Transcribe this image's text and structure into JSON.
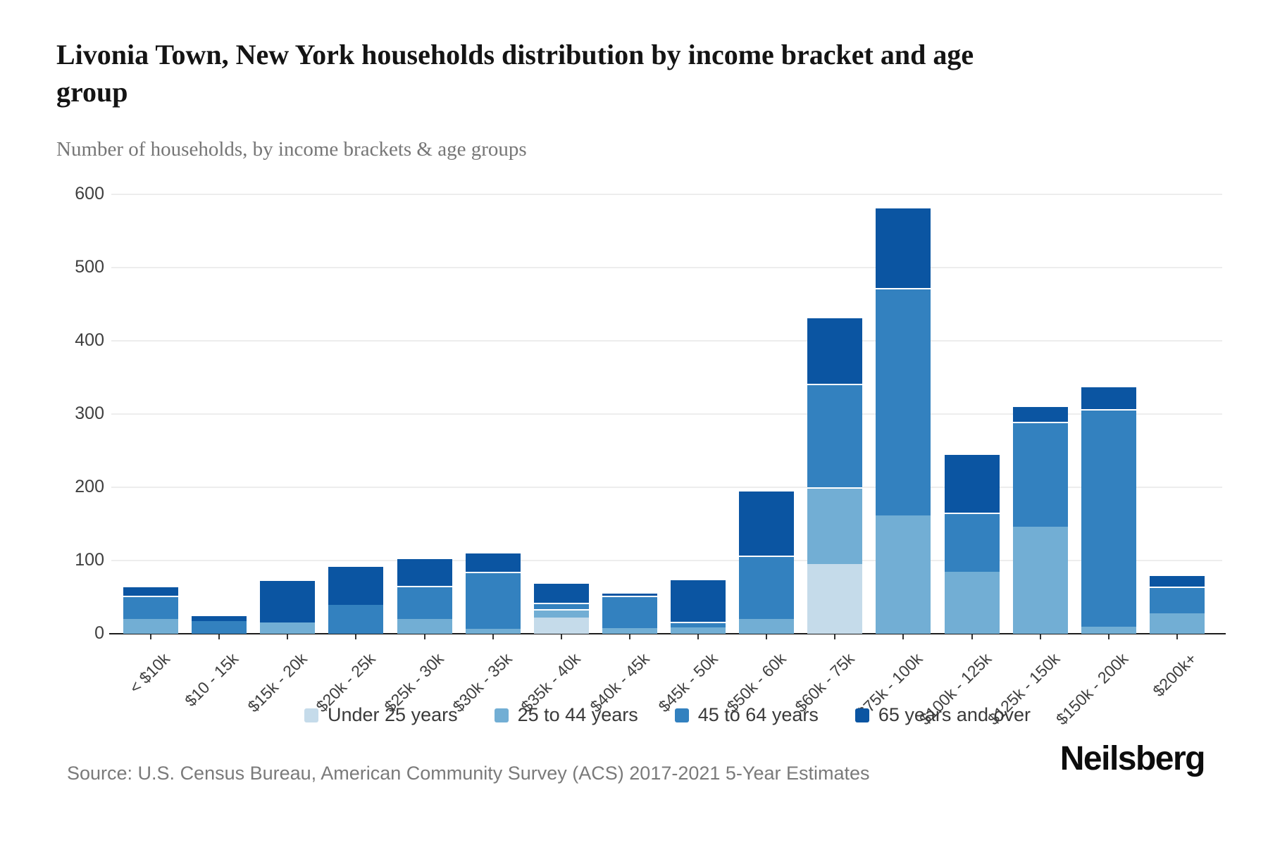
{
  "header": {
    "title": "Livonia Town, New York households distribution by income bracket and age group",
    "subtitle": "Number of households, by income brackets & age groups"
  },
  "chart_data": {
    "type": "bar",
    "stacked": true,
    "title": "Livonia Town, New York households distribution by income bracket and age group",
    "subtitle": "Number of households, by income brackets & age groups",
    "xlabel": "",
    "ylabel": "",
    "ylim": [
      0,
      600
    ],
    "yticks": [
      0,
      100,
      200,
      300,
      400,
      500,
      600
    ],
    "grid": true,
    "legend_position": "bottom",
    "categories": [
      "< $10k",
      "$10 - 15k",
      "$15k - 20k",
      "$20k - 25k",
      "$25k - 30k",
      "$30k - 35k",
      "$35k - 40k",
      "$40k - 45k",
      "$45k - 50k",
      "$50k - 60k",
      "$60k - 75k",
      "$75k - 100k",
      "$100k - 125k",
      "$125k - 150k",
      "$150k - 200k",
      "$200k+"
    ],
    "series": [
      {
        "name": "Under 25 years",
        "color": "#c5dbea",
        "values": [
          0,
          0,
          0,
          0,
          0,
          0,
          22,
          0,
          0,
          0,
          95,
          0,
          0,
          0,
          0,
          0
        ]
      },
      {
        "name": "25 to 44 years",
        "color": "#72aed4",
        "values": [
          20,
          0,
          15,
          0,
          20,
          7,
          12,
          8,
          9,
          20,
          105,
          162,
          85,
          146,
          10,
          28
        ]
      },
      {
        "name": "45 to 64 years",
        "color": "#3381bf",
        "values": [
          32,
          17,
          0,
          39,
          45,
          78,
          8,
          44,
          7,
          87,
          141,
          310,
          80,
          143,
          297,
          36
        ]
      },
      {
        "name": "65 years and over",
        "color": "#0b55a2",
        "values": [
          13,
          9,
          59,
          54,
          39,
          27,
          28,
          5,
          59,
          89,
          92,
          111,
          81,
          23,
          31,
          17
        ]
      }
    ],
    "totals": [
      65,
      26,
      74,
      93,
      104,
      112,
      70,
      57,
      75,
      196,
      433,
      583,
      246,
      312,
      338,
      81
    ]
  },
  "footer": {
    "source": "Source: U.S. Census Bureau, American Community Survey (ACS) 2017-2021 5-Year Estimates",
    "brand": "Neilsberg"
  }
}
